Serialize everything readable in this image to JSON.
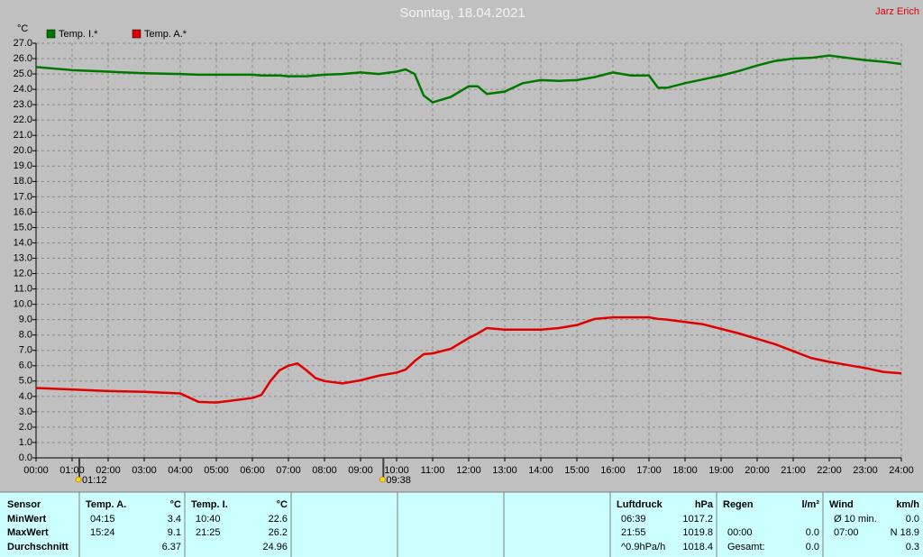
{
  "chart_data": {
    "type": "line",
    "title": "Sonntag, 18.04.2021",
    "owner": "Jarz Erich",
    "y_label": "°C",
    "x": [
      0,
      1,
      2,
      3,
      4,
      4.5,
      5,
      6,
      6.25,
      6.5,
      6.75,
      7,
      7.25,
      7.5,
      7.75,
      8,
      8.5,
      9,
      9.5,
      10,
      10.25,
      10.5,
      10.75,
      11,
      11.5,
      12,
      12.25,
      12.5,
      13,
      13.5,
      14,
      14.5,
      15,
      15.5,
      16,
      16.5,
      17,
      17.25,
      17.5,
      18,
      18.5,
      19,
      19.5,
      20,
      20.5,
      21,
      21.5,
      22,
      22.5,
      23,
      23.5,
      24
    ],
    "series": [
      {
        "name": "Temp. I.*",
        "color": "#007800",
        "values": [
          25.45,
          25.25,
          25.15,
          25.05,
          25.0,
          24.95,
          24.95,
          24.95,
          24.9,
          24.9,
          24.9,
          24.85,
          24.85,
          24.85,
          24.9,
          24.95,
          25.0,
          25.1,
          25.0,
          25.15,
          25.3,
          25.0,
          23.6,
          23.15,
          23.5,
          24.2,
          24.2,
          23.7,
          23.85,
          24.4,
          24.6,
          24.55,
          24.6,
          24.8,
          25.1,
          24.9,
          24.9,
          24.1,
          24.1,
          24.4,
          24.65,
          24.9,
          25.2,
          25.55,
          25.85,
          26.0,
          26.05,
          26.2,
          26.05,
          25.9,
          25.8,
          25.65
        ]
      },
      {
        "name": "Temp. A.*",
        "color": "#e00000",
        "values": [
          4.55,
          4.45,
          4.35,
          4.3,
          4.2,
          3.65,
          3.6,
          3.9,
          4.1,
          5.0,
          5.7,
          6.0,
          6.15,
          5.7,
          5.2,
          5.0,
          4.85,
          5.05,
          5.35,
          5.55,
          5.75,
          6.3,
          6.75,
          6.8,
          7.1,
          7.8,
          8.1,
          8.45,
          8.35,
          8.35,
          8.35,
          8.45,
          8.65,
          9.05,
          9.15,
          9.15,
          9.15,
          9.05,
          9.0,
          8.85,
          8.7,
          8.4,
          8.1,
          7.75,
          7.4,
          6.95,
          6.5,
          6.25,
          6.05,
          5.85,
          5.6,
          5.5
        ]
      }
    ],
    "xlim": [
      0,
      24
    ],
    "ylim": [
      0,
      27
    ],
    "xticks": [
      {
        "value": 0,
        "label": "00:00"
      },
      {
        "value": 1,
        "label": "01:00"
      },
      {
        "value": 2,
        "label": "02:00"
      },
      {
        "value": 3,
        "label": "03:00"
      },
      {
        "value": 4,
        "label": "04:00"
      },
      {
        "value": 5,
        "label": "05:00"
      },
      {
        "value": 6,
        "label": "06:00"
      },
      {
        "value": 7,
        "label": "07:00"
      },
      {
        "value": 8,
        "label": "08:00"
      },
      {
        "value": 9,
        "label": "09:00"
      },
      {
        "value": 10,
        "label": "10:00"
      },
      {
        "value": 11,
        "label": "11:00"
      },
      {
        "value": 12,
        "label": "12:00"
      },
      {
        "value": 13,
        "label": "13:00"
      },
      {
        "value": 14,
        "label": "14:00"
      },
      {
        "value": 15,
        "label": "15:00"
      },
      {
        "value": 16,
        "label": "16:00"
      },
      {
        "value": 17,
        "label": "17:00"
      },
      {
        "value": 18,
        "label": "18:00"
      },
      {
        "value": 19,
        "label": "19:00"
      },
      {
        "value": 20,
        "label": "20:00"
      },
      {
        "value": 21,
        "label": "21:00"
      },
      {
        "value": 22,
        "label": "22:00"
      },
      {
        "value": 23,
        "label": "23:00"
      },
      {
        "value": 24,
        "label": "24:00"
      }
    ],
    "yticks": [
      {
        "value": 0,
        "label": "0.0"
      },
      {
        "value": 1,
        "label": "1.0"
      },
      {
        "value": 2,
        "label": "2.0"
      },
      {
        "value": 3,
        "label": "3.0"
      },
      {
        "value": 4,
        "label": "4.0"
      },
      {
        "value": 5,
        "label": "5.0"
      },
      {
        "value": 6,
        "label": "6.0"
      },
      {
        "value": 7,
        "label": "7.0"
      },
      {
        "value": 8,
        "label": "8.0"
      },
      {
        "value": 9,
        "label": "9.0"
      },
      {
        "value": 10,
        "label": "10.0"
      },
      {
        "value": 11,
        "label": "11.0"
      },
      {
        "value": 12,
        "label": "12.0"
      },
      {
        "value": 13,
        "label": "13.0"
      },
      {
        "value": 14,
        "label": "14.0"
      },
      {
        "value": 15,
        "label": "15.0"
      },
      {
        "value": 16,
        "label": "16.0"
      },
      {
        "value": 17,
        "label": "17.0"
      },
      {
        "value": 18,
        "label": "18.0"
      },
      {
        "value": 19,
        "label": "19.0"
      },
      {
        "value": 20,
        "label": "20.0"
      },
      {
        "value": 21,
        "label": "21.0"
      },
      {
        "value": 22,
        "label": "22.0"
      },
      {
        "value": 23,
        "label": "23.0"
      },
      {
        "value": 24,
        "label": "24.0"
      },
      {
        "value": 25,
        "label": "25.0"
      },
      {
        "value": 26,
        "label": "26.0"
      },
      {
        "value": 27,
        "label": "27.0"
      }
    ],
    "markers": [
      {
        "x": 1.2,
        "label": "01:12"
      },
      {
        "x": 9.633,
        "label": "09:38"
      }
    ],
    "grid": true,
    "legend": "top-left"
  },
  "table": {
    "panels": [
      {
        "header": {
          "left": "Sensor"
        },
        "rows": [
          {
            "left": "MinWert"
          },
          {
            "left": "MaxWert"
          },
          {
            "left": "Durchschnitt"
          }
        ]
      },
      {
        "header": {
          "left": "Temp. A.",
          "right": "°C"
        },
        "rows": [
          {
            "left": "04:15",
            "right": "3.4"
          },
          {
            "left": "15:24",
            "right": "9.1"
          },
          {
            "right": "6.37"
          }
        ]
      },
      {
        "header": {
          "left": "Temp. I.",
          "right": "°C"
        },
        "rows": [
          {
            "left": "10:40",
            "right": "22.6"
          },
          {
            "left": "21:25",
            "right": "26.2"
          },
          {
            "right": "24.96"
          }
        ]
      },
      {
        "header": {
          "left": "Luftdruck",
          "right": "hPa"
        },
        "rows": [
          {
            "left": "06:39",
            "right": "1017.2"
          },
          {
            "left": "21:55",
            "right": "1019.8"
          },
          {
            "left": "^0.9hPa/h",
            "right": "1018.4"
          }
        ]
      },
      {
        "header": {
          "left": "Regen",
          "right": "l/m²"
        },
        "rows": [
          null,
          {
            "left": "00:00",
            "right": "0.0"
          },
          {
            "left": "Gesamt:",
            "right": "0.0"
          }
        ]
      },
      {
        "header": {
          "left": "Wind",
          "right": "km/h"
        },
        "rows": [
          {
            "left": "Ø 10 min.",
            "right": "0.0"
          },
          {
            "left": "07:00",
            "right": "N 18.9"
          },
          {
            "right": "0.3"
          }
        ]
      }
    ]
  }
}
